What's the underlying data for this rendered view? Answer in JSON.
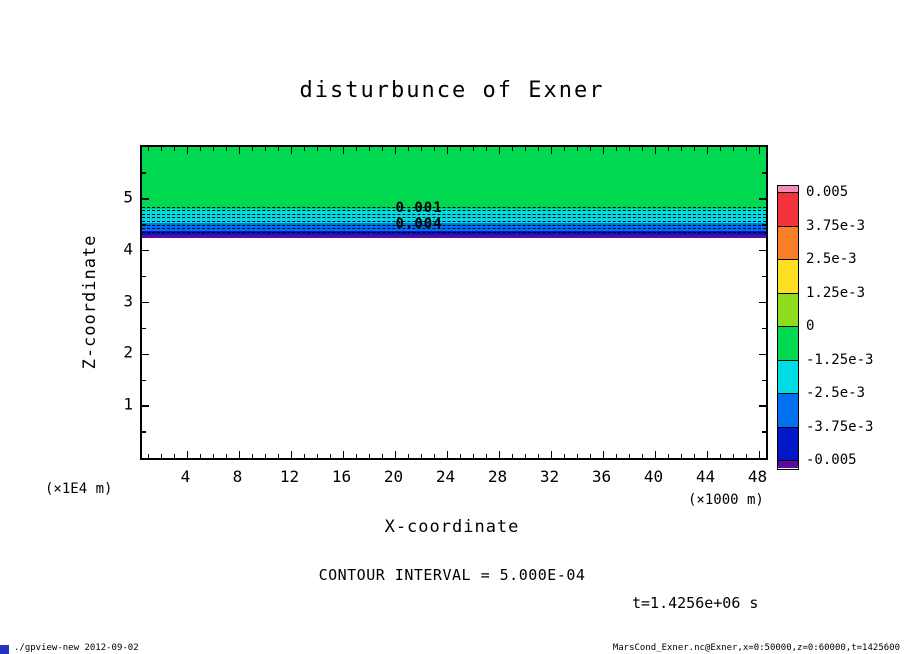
{
  "title": "disturbunce of Exner",
  "axes": {
    "x_label": "X-coordinate",
    "y_label": "Z-coordinate",
    "y_unit_note": "(×1E4 m)",
    "x_unit_note": "(×1000 m)",
    "x_ticks": [
      4,
      8,
      12,
      16,
      20,
      24,
      28,
      32,
      36,
      40,
      44,
      48
    ],
    "y_ticks": [
      5,
      4,
      3,
      2,
      1
    ]
  },
  "chart_data": {
    "type": "heatmap",
    "title": "disturbunce of Exner",
    "xlabel": "X-coordinate (×1000 m)",
    "ylabel": "Z-coordinate (×1E4 m)",
    "xlim": [
      0.5,
      48.5
    ],
    "ylim": [
      0,
      6
    ],
    "x_range_note": "x=0:50000",
    "z_range_note": "z=0:60000",
    "time": "t=1.4256e+06 s",
    "contour_interval": 0.0005,
    "bands": [
      {
        "value_range": "0 to -1.25e-3",
        "z_top": 6.0,
        "z_bottom": 4.8,
        "color": "#00d84f"
      },
      {
        "value_range": "-1.25e-3 to -2.5e-3",
        "z_top": 4.8,
        "z_bottom": 4.53,
        "color": "#00dce6"
      },
      {
        "value_range": "-2.5e-3 to -3.75e-3",
        "z_top": 4.53,
        "z_bottom": 4.38,
        "color": "#0070f0"
      },
      {
        "value_range": "-3.75e-3 to -5e-3",
        "z_top": 4.38,
        "z_bottom": 4.3,
        "color": "#0018c8"
      },
      {
        "value_range": "below -5e-3",
        "z_top": 4.3,
        "z_bottom": 4.25,
        "color": "#5c0a9e"
      }
    ],
    "contour_lines_z": [
      4.85,
      4.78,
      4.71,
      4.64,
      4.57,
      4.5,
      4.43,
      4.36
    ],
    "contour_labels": [
      {
        "text": "0.001",
        "x": 20,
        "z": 4.82
      },
      {
        "text": "0.004",
        "x": 20,
        "z": 4.52
      }
    ]
  },
  "colorbar": {
    "labels": [
      "0.005",
      "3.75e-3",
      "2.5e-3",
      "1.25e-3",
      "0",
      "-1.25e-3",
      "-2.5e-3",
      "-3.75e-3",
      "-0.005"
    ],
    "segments": [
      {
        "color": "#f78ab8",
        "cap": true
      },
      {
        "color": "#f2333c"
      },
      {
        "color": "#fa7d28"
      },
      {
        "color": "#ffdf22"
      },
      {
        "color": "#8fdc1e"
      },
      {
        "color": "#00d84f"
      },
      {
        "color": "#00dce6"
      },
      {
        "color": "#0070f0"
      },
      {
        "color": "#0018c8"
      },
      {
        "color": "#5c0a9e",
        "cap": true
      }
    ]
  },
  "annotations": {
    "contour_interval_text": "CONTOUR INTERVAL = 5.000E-04",
    "time_text": "t=1.4256e+06 s"
  },
  "footer": {
    "left": "./gpview-new  2012-09-02",
    "right": "MarsCond_Exner.nc@Exner,x=0:50000,z=0:60000,t=1425600"
  }
}
